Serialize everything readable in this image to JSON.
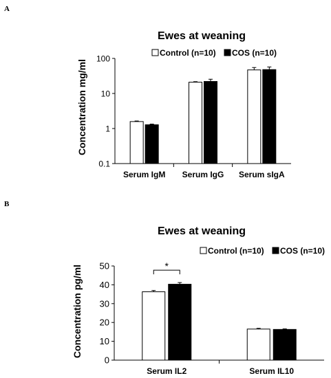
{
  "panels": {
    "a": "A",
    "b": "B"
  },
  "legend": {
    "control": "Control (n=10)",
    "cos": "COS (n=10)"
  },
  "colors": {
    "control": "#ffffff",
    "cos": "#000000",
    "stroke": "#000000"
  },
  "chart_data": [
    {
      "type": "bar",
      "title": "Ewes at weaning",
      "xlabel": "",
      "ylabel": "Concentration mg/ml",
      "yscale": "log",
      "ylim": [
        0.1,
        100
      ],
      "yticks": [
        0.1,
        1,
        10,
        100
      ],
      "ytick_labels": [
        "0.1",
        "1",
        "10",
        "100"
      ],
      "categories": [
        "Serum IgM",
        "Serum IgG",
        "Serum sIgA"
      ],
      "series": [
        {
          "name": "Control (n=10)",
          "values": [
            1.58,
            21.0,
            47.0
          ],
          "errors": [
            0.06,
            0.7,
            8.0
          ]
        },
        {
          "name": "COS (n=10)",
          "values": [
            1.28,
            22.0,
            48.0
          ],
          "errors": [
            0.06,
            3.5,
            9.0
          ]
        }
      ],
      "legend_position": "top"
    },
    {
      "type": "bar",
      "title": "Ewes at weaning",
      "xlabel": "",
      "ylabel": "Concentration pg/ml",
      "yscale": "linear",
      "ylim": [
        0,
        50
      ],
      "yticks": [
        0,
        10,
        20,
        30,
        40,
        50
      ],
      "ytick_labels": [
        "0",
        "10",
        "20",
        "30",
        "40",
        "50"
      ],
      "categories": [
        "Serum IL2",
        "Serum IL10"
      ],
      "series": [
        {
          "name": "Control (n=10)",
          "values": [
            36.3,
            16.5
          ],
          "errors": [
            0.7,
            0.4
          ]
        },
        {
          "name": "COS (n=10)",
          "values": [
            40.3,
            16.3
          ],
          "errors": [
            0.9,
            0.3
          ]
        }
      ],
      "significance": {
        "category": "Serum IL2",
        "label": "*"
      },
      "legend_position": "top"
    }
  ]
}
